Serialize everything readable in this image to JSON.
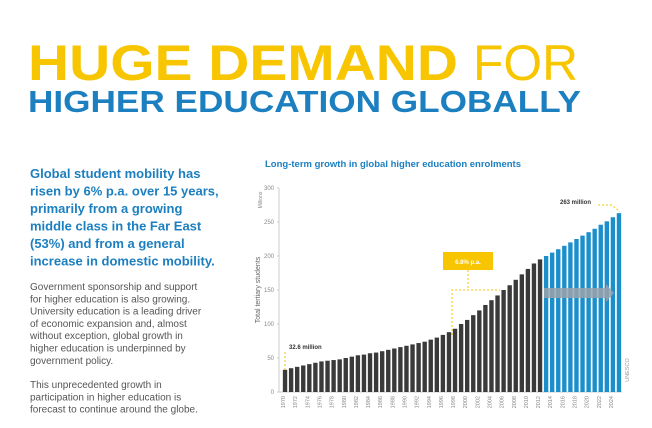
{
  "header": {
    "title_bold": "HUGE DEMAND",
    "title_light": "FOR",
    "subtitle": "HIGHER EDUCATION GLOBALLY"
  },
  "body": {
    "lead": [
      "Global student mobility has",
      "risen by 6% p.a. over 15 years,",
      "primarily from a growing",
      "middle class in the Far East",
      "(53%) and from a general",
      "increase in domestic mobility."
    ],
    "paragraphs": [
      [
        "Government sponsorship and support",
        "for higher education is also growing.",
        "University education is a leading driver",
        "of economic expansion and, almost",
        "without exception, global growth in",
        "higher education is underpinned by",
        "government policy."
      ],
      [
        "This unprecedented growth in",
        "participation in higher education is",
        "forecast to continue around the globe."
      ]
    ]
  },
  "chart_data": {
    "type": "bar",
    "title": "Long-term growth in global higher education enrolments",
    "y_label": "Total tertiary students",
    "y_unit": "Millions",
    "source": "UNESCO",
    "annotations": [
      "32.6 million",
      "263 million",
      "6.8% p.a."
    ],
    "categories": [
      "1970",
      null,
      "1972",
      null,
      "1974",
      null,
      "1976",
      null,
      "1978",
      null,
      "1980",
      null,
      "1982",
      null,
      "1984",
      null,
      "1986",
      null,
      "1988",
      null,
      "1990",
      null,
      "1992",
      null,
      "1994",
      null,
      "1996",
      null,
      "1998",
      null,
      "2000",
      null,
      "2002",
      null,
      "2004",
      null,
      "2006",
      null,
      "2008",
      null,
      "2010",
      null,
      "2012",
      null,
      "2014",
      null,
      "2016",
      null,
      "2018",
      null,
      "2020",
      null,
      "2022",
      null,
      "2024",
      null
    ],
    "series": [
      {
        "color": "#3a3a3a",
        "values": [
          32.6,
          35,
          37,
          39,
          41,
          43,
          45,
          46,
          47,
          48,
          50,
          52,
          54,
          55,
          57,
          58,
          60,
          62,
          64,
          66,
          68,
          70,
          72,
          74,
          77,
          80,
          84,
          88,
          93,
          100,
          106,
          113,
          120,
          128,
          135,
          142,
          150,
          157,
          165,
          173,
          181,
          189,
          195,
          null,
          null,
          null,
          null,
          null,
          null,
          null,
          null,
          null,
          null,
          null,
          null,
          null
        ]
      },
      {
        "color": "#1b8fcb",
        "values": [
          null,
          null,
          null,
          null,
          null,
          null,
          null,
          null,
          null,
          null,
          null,
          null,
          null,
          null,
          null,
          null,
          null,
          null,
          null,
          null,
          null,
          null,
          null,
          null,
          null,
          null,
          null,
          null,
          null,
          null,
          null,
          null,
          null,
          null,
          null,
          null,
          null,
          null,
          null,
          null,
          null,
          null,
          null,
          200,
          205,
          210,
          215,
          220,
          225,
          230,
          235,
          240,
          246,
          251,
          257,
          263
        ]
      }
    ],
    "ylim": [
      0,
      300
    ],
    "yticks": [
      0,
      50,
      100,
      150,
      200,
      250,
      300
    ],
    "grid": false
  }
}
